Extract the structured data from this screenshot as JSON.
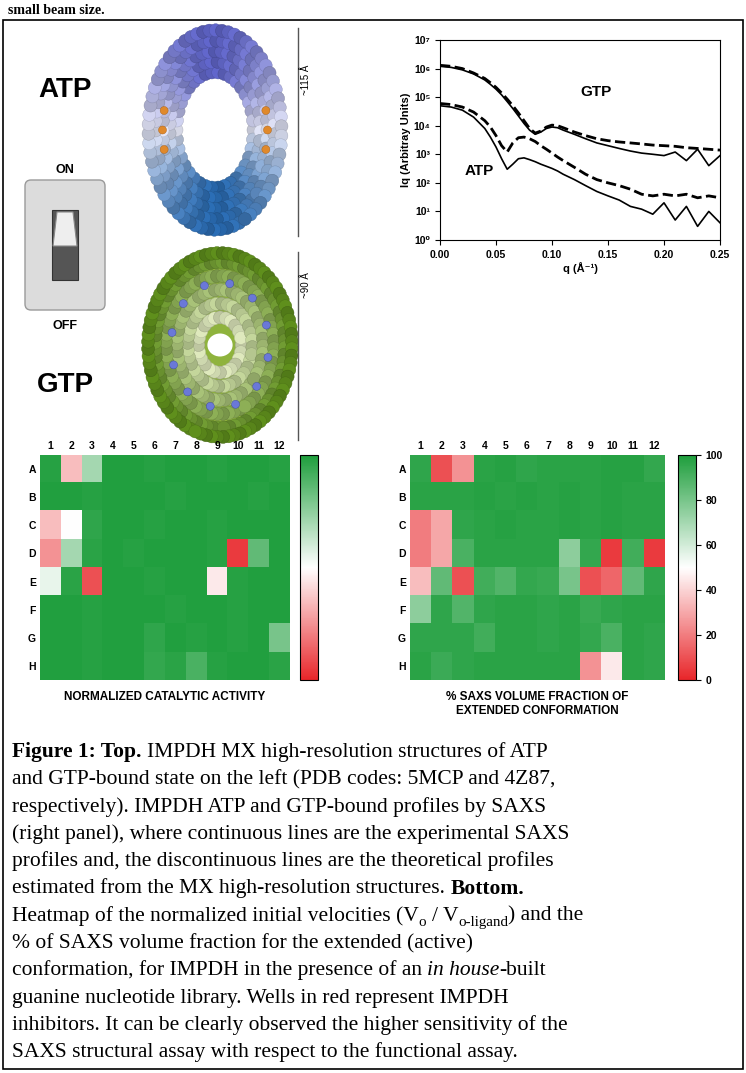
{
  "header": {
    "text": "small beam size."
  },
  "structures": [
    {
      "label": "ATP",
      "switch": "ON",
      "size": "~115 Å"
    },
    {
      "label": "GTP",
      "switch": "OFF",
      "size": "~90 Å"
    }
  ],
  "chart_data": [
    {
      "type": "line",
      "log": "y",
      "xlabel": "q (Å⁻¹)",
      "ylabel": "Iq (Arbitray Units)",
      "x": [
        0,
        0.01,
        0.02,
        0.03,
        0.04,
        0.045,
        0.05,
        0.055,
        0.06,
        0.065,
        0.07,
        0.075,
        0.08,
        0.085,
        0.09,
        0.095,
        0.1,
        0.105,
        0.11,
        0.12,
        0.13,
        0.14,
        0.15,
        0.16,
        0.17,
        0.18,
        0.19,
        0.2,
        0.21,
        0.22,
        0.23,
        0.24,
        0.25
      ],
      "xlim": [
        0,
        0.25
      ],
      "xticks": [
        {
          "value": 0,
          "label": "0.00"
        },
        {
          "value": 0.05,
          "label": "0.05"
        },
        {
          "value": 0.1,
          "label": "0.10"
        },
        {
          "value": 0.15,
          "label": "0.15"
        },
        {
          "value": 0.2,
          "label": "0.20"
        },
        {
          "value": 0.25,
          "label": "0.25"
        }
      ],
      "ylim": [
        1,
        10000000
      ],
      "yticks": [
        {
          "value": 1,
          "label": "10⁰"
        },
        {
          "value": 10,
          "label": "10¹"
        },
        {
          "value": 100,
          "label": "10²"
        },
        {
          "value": 1000,
          "label": "10³"
        },
        {
          "value": 10000,
          "label": "10⁴"
        },
        {
          "value": 100000,
          "label": "10⁵"
        },
        {
          "value": 1000000,
          "label": "10⁶"
        },
        {
          "value": 10000000,
          "label": "10⁷"
        }
      ],
      "series": [
        {
          "color": "#000000",
          "line_style": "solid",
          "values": [
            1200000,
            1100000,
            900000,
            650000,
            400000,
            280000,
            190000,
            120000,
            70000,
            40000,
            22000,
            12000,
            7000,
            5000,
            6000,
            8000,
            9000,
            8500,
            7000,
            5000,
            3500,
            2500,
            2000,
            1600,
            1300,
            1100,
            1000,
            900,
            1200,
            600,
            1500,
            400,
            900
          ]
        },
        {
          "color": "#000000",
          "line_style": "dashed",
          "values": [
            1300000,
            1200000,
            1000000,
            700000,
            450000,
            320000,
            220000,
            140000,
            85000,
            50000,
            28000,
            15000,
            8000,
            5500,
            6500,
            9000,
            10500,
            10000,
            8500,
            6000,
            4500,
            3500,
            3000,
            2700,
            2500,
            2300,
            2100,
            2000,
            1900,
            1700,
            1600,
            1500,
            1400
          ]
        },
        {
          "color": "#000000",
          "line_style": "solid",
          "values": [
            50000,
            45000,
            35000,
            20000,
            8000,
            4000,
            1800,
            700,
            300,
            450,
            700,
            750,
            650,
            550,
            450,
            380,
            320,
            260,
            200,
            130,
            80,
            50,
            35,
            25,
            15,
            12,
            8,
            20,
            5,
            15,
            3,
            10,
            4
          ]
        },
        {
          "color": "#000000",
          "line_style": "dashed",
          "values": [
            60000,
            55000,
            45000,
            30000,
            15000,
            9000,
            4500,
            2000,
            1200,
            2500,
            3800,
            4000,
            3500,
            2800,
            2000,
            1500,
            1100,
            800,
            600,
            350,
            200,
            130,
            100,
            80,
            60,
            40,
            35,
            40,
            35,
            40,
            30,
            35,
            30
          ]
        }
      ],
      "annotations": [
        {
          "text": "GTP",
          "x": 0.125,
          "y": 150000
        },
        {
          "text": "ATP",
          "x": 0.022,
          "y": 250
        }
      ]
    },
    {
      "type": "heatmap",
      "title": "NORMALIZED CATALYTIC ACTIVITY",
      "columns": [
        "1",
        "2",
        "3",
        "4",
        "5",
        "6",
        "7",
        "8",
        "9",
        "10",
        "11",
        "12"
      ],
      "rows": [
        "A",
        "B",
        "C",
        "D",
        "E",
        "F",
        "G",
        "H"
      ],
      "cells": [
        [
          98,
          35,
          70,
          99,
          99,
          98,
          99,
          99,
          98,
          99,
          99,
          98
        ],
        [
          99,
          99,
          98,
          99,
          99,
          99,
          98,
          99,
          99,
          99,
          98,
          99
        ],
        [
          35,
          50,
          96,
          99,
          99,
          98,
          99,
          99,
          98,
          99,
          99,
          99
        ],
        [
          25,
          70,
          97,
          99,
          98,
          99,
          99,
          99,
          98,
          5,
          85,
          99
        ],
        [
          55,
          97,
          10,
          99,
          99,
          98,
          99,
          99,
          45,
          98,
          99,
          99
        ],
        [
          99,
          99,
          98,
          99,
          99,
          99,
          98,
          99,
          99,
          98,
          99,
          99
        ],
        [
          99,
          99,
          98,
          99,
          99,
          96,
          99,
          98,
          99,
          98,
          99,
          80
        ],
        [
          99,
          99,
          98,
          99,
          99,
          95,
          97,
          90,
          98,
          99,
          99,
          97
        ]
      ],
      "colorbar_range": [
        0,
        100
      ]
    },
    {
      "type": "heatmap",
      "title": "% SAXS VOLUME FRACTION OF\nEXTENDED CONFORMATION",
      "columns": [
        "1",
        "2",
        "3",
        "4",
        "5",
        "6",
        "7",
        "8",
        "9",
        "10",
        "11",
        "12"
      ],
      "rows": [
        "A",
        "B",
        "C",
        "D",
        "E",
        "F",
        "G",
        "H"
      ],
      "cells": [
        [
          96,
          10,
          25,
          97,
          98,
          96,
          97,
          97,
          97,
          98,
          98,
          95
        ],
        [
          97,
          97,
          97,
          98,
          97,
          98,
          97,
          98,
          97,
          98,
          97,
          97
        ],
        [
          20,
          30,
          96,
          97,
          98,
          97,
          97,
          98,
          97,
          98,
          97,
          97
        ],
        [
          20,
          30,
          90,
          97,
          97,
          97,
          97,
          75,
          95,
          5,
          92,
          5
        ],
        [
          35,
          85,
          10,
          92,
          88,
          95,
          94,
          80,
          10,
          15,
          85,
          96
        ],
        [
          75,
          96,
          88,
          96,
          97,
          97,
          96,
          97,
          94,
          96,
          97,
          97
        ],
        [
          96,
          96,
          96,
          92,
          97,
          97,
          96,
          97,
          95,
          90,
          97,
          96
        ],
        [
          97,
          93,
          96,
          97,
          97,
          97,
          97,
          97,
          25,
          45,
          97,
          96
        ]
      ],
      "colorbar_range": [
        0,
        100
      ],
      "colorbar_ticks": [
        0,
        20,
        40,
        60,
        80,
        100
      ]
    }
  ],
  "caption": {
    "lines": [
      [
        {
          "text": "Figure 1: Top.",
          "style": "bold"
        },
        {
          "text": " IMPDH MX high-resolution structures of ATP"
        }
      ],
      [
        {
          "text": "and GTP-bound state on the left (PDB codes: 5MCP and 4Z87,"
        }
      ],
      [
        {
          "text": "respectively). IMPDH ATP and GTP-bound profiles by SAXS"
        }
      ],
      [
        {
          "text": "(right panel), where continuous lines are the experimental SAXS"
        }
      ],
      [
        {
          "text": "profiles and, the discontinuous lines are the theoretical profiles"
        }
      ],
      [
        {
          "text": "estimated from the MX high-resolution structures. "
        },
        {
          "text": "Bottom.",
          "style": "bold"
        }
      ],
      [
        {
          "text": "Heatmap of the normalized initial velocities (V"
        },
        {
          "text": "o",
          "style": "sub"
        },
        {
          "text": " / V"
        },
        {
          "text": "o-ligand",
          "style": "sub"
        },
        {
          "text": ") and the"
        }
      ],
      [
        {
          "text": "% of SAXS volume fraction for the extended (active)"
        }
      ],
      [
        {
          "text": "conformation, for IMPDH in the presence of an "
        },
        {
          "text": "in house",
          "style": "italic"
        },
        {
          "text": "-built"
        }
      ],
      [
        {
          "text": "guanine nucleotide library. Wells in red represent IMPDH"
        }
      ],
      [
        {
          "text": "inhibitors. It can be clearly observed the higher sensitivity of the"
        }
      ],
      [
        {
          "text": "SAXS structural assay with respect to the functional assay."
        }
      ]
    ]
  }
}
